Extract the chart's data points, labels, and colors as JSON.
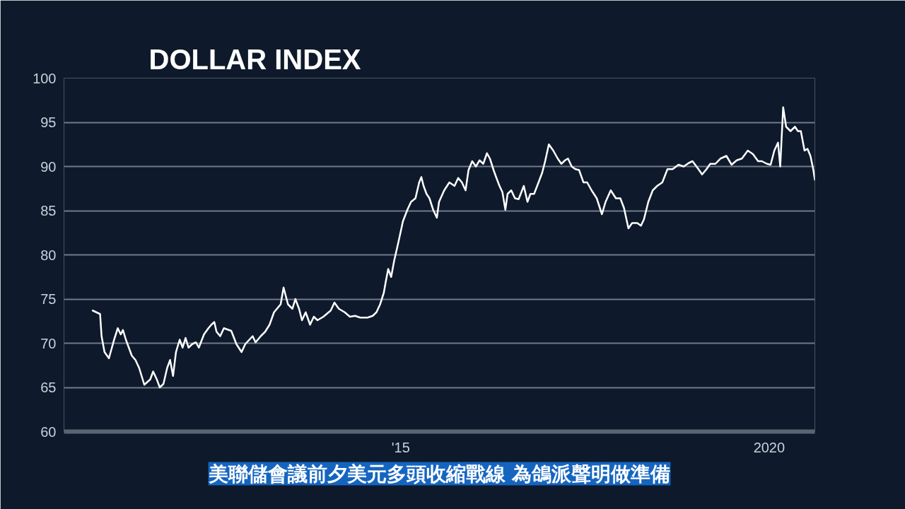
{
  "chart_data": {
    "type": "line",
    "title": "DOLLAR INDEX",
    "annotations": [
      "美聯儲會議前夕美元多頭收縮戰線 為鴿派聲明做準備"
    ],
    "x": [
      2010.82,
      2010.92,
      2010.94,
      2010.98,
      2011.04,
      2011.08,
      2011.11,
      2011.16,
      2011.2,
      2011.23,
      2011.27,
      2011.31,
      2011.35,
      2011.4,
      2011.45,
      2011.52,
      2011.6,
      2011.64,
      2011.69,
      2011.73,
      2011.78,
      2011.83,
      2011.87,
      2011.91,
      2011.95,
      2012.0,
      2012.04,
      2012.08,
      2012.12,
      2012.17,
      2012.22,
      2012.26,
      2012.33,
      2012.39,
      2012.43,
      2012.47,
      2012.5,
      2012.55,
      2012.6,
      2012.7,
      2012.77,
      2012.84,
      2012.89,
      2012.99,
      2013.03,
      2013.1,
      2013.16,
      2013.22,
      2013.28,
      2013.32,
      2013.37,
      2013.41,
      2013.47,
      2013.53,
      2013.57,
      2013.62,
      2013.66,
      2013.71,
      2013.77,
      2013.82,
      2013.87,
      2013.95,
      2014.05,
      2014.1,
      2014.16,
      2014.24,
      2014.31,
      2014.38,
      2014.45,
      2014.55,
      2014.62,
      2014.67,
      2014.72,
      2014.77,
      2014.8,
      2014.83,
      2014.87,
      2014.91,
      2014.97,
      2015.03,
      2015.09,
      2015.14,
      2015.2,
      2015.25,
      2015.28,
      2015.31,
      2015.35,
      2015.39,
      2015.44,
      2015.49,
      2015.52,
      2015.59,
      2015.66,
      2015.73,
      2015.78,
      2015.83,
      2015.88,
      2015.92,
      2015.97,
      2016.02,
      2016.07,
      2016.12,
      2016.17,
      2016.21,
      2016.26,
      2016.29,
      2016.34,
      2016.38,
      2016.42,
      2016.45,
      2016.5,
      2016.55,
      2016.6,
      2016.67,
      2016.72,
      2016.76,
      2016.81,
      2016.87,
      2016.92,
      2016.96,
      2017.01,
      2017.07,
      2017.13,
      2017.18,
      2017.23,
      2017.27,
      2017.32,
      2017.37,
      2017.42,
      2017.48,
      2017.53,
      2017.59,
      2017.66,
      2017.73,
      2017.78,
      2017.85,
      2017.92,
      2017.98,
      2018.03,
      2018.09,
      2018.14,
      2018.21,
      2018.26,
      2018.3,
      2018.36,
      2018.42,
      2018.48,
      2018.55,
      2018.62,
      2018.69,
      2018.77,
      2018.84,
      2018.91,
      2018.96,
      2019.04,
      2019.09,
      2019.15,
      2019.2,
      2019.27,
      2019.34,
      2019.42,
      2019.49,
      2019.56,
      2019.63,
      2019.71,
      2019.78,
      2019.85,
      2019.9,
      2019.97,
      2020.02,
      2020.07,
      2020.12,
      2020.15,
      2020.19,
      2020.23,
      2020.29,
      2020.35,
      2020.39,
      2020.43,
      2020.48,
      2020.52,
      2020.56,
      2020.6,
      2020.62
    ],
    "series": [
      {
        "color": "#ffffff",
        "values": [
          73.7,
          73.3,
          70.8,
          69.0,
          68.3,
          69.5,
          70.4,
          71.7,
          71.0,
          71.5,
          70.4,
          69.5,
          68.6,
          68.1,
          67.2,
          65.3,
          65.9,
          66.8,
          65.9,
          65.0,
          65.4,
          67.2,
          68.1,
          66.3,
          69.0,
          70.4,
          69.5,
          70.6,
          69.5,
          69.9,
          70.1,
          69.5,
          71.0,
          71.7,
          72.1,
          72.4,
          71.3,
          70.8,
          71.7,
          71.4,
          69.9,
          69.0,
          69.9,
          70.8,
          70.1,
          70.8,
          71.3,
          72.1,
          73.5,
          73.9,
          74.4,
          76.3,
          74.4,
          73.9,
          75.0,
          73.9,
          72.6,
          73.5,
          72.1,
          73.0,
          72.6,
          73.0,
          73.7,
          74.6,
          73.9,
          73.5,
          73.0,
          73.1,
          72.9,
          72.9,
          73.1,
          73.5,
          74.4,
          75.7,
          77.1,
          78.4,
          77.5,
          79.3,
          81.5,
          83.8,
          85.1,
          86.0,
          86.4,
          88.2,
          88.8,
          87.8,
          86.9,
          86.4,
          85.1,
          84.2,
          86.0,
          87.3,
          88.2,
          87.8,
          88.7,
          88.2,
          87.3,
          89.6,
          90.6,
          90.0,
          90.7,
          90.3,
          91.5,
          90.9,
          89.6,
          88.9,
          87.8,
          87.1,
          85.1,
          86.9,
          87.3,
          86.4,
          86.3,
          87.8,
          86.0,
          86.9,
          86.9,
          88.2,
          89.3,
          90.6,
          92.5,
          91.8,
          90.9,
          90.3,
          90.7,
          90.9,
          90.0,
          89.7,
          89.6,
          88.2,
          88.2,
          87.3,
          86.4,
          84.6,
          86.0,
          87.3,
          86.4,
          86.4,
          85.3,
          83.0,
          83.6,
          83.6,
          83.3,
          84.0,
          86.0,
          87.3,
          87.8,
          88.2,
          89.7,
          89.7,
          90.2,
          90.0,
          90.4,
          90.6,
          89.7,
          89.1,
          89.7,
          90.3,
          90.3,
          90.9,
          91.2,
          90.2,
          90.7,
          90.9,
          91.8,
          91.4,
          90.6,
          90.6,
          90.3,
          90.2,
          91.8,
          92.7,
          90.0,
          96.7,
          94.5,
          94.0,
          94.5,
          94.0,
          94.0,
          91.8,
          92.0,
          91.2,
          89.6,
          88.5
        ]
      }
    ],
    "xlim": [
      2010.43,
      2020.62
    ],
    "xticks": [
      {
        "value": 2015,
        "label": "'15"
      },
      2020
    ],
    "ylim": [
      60,
      100
    ],
    "yticks": [
      60,
      65,
      70,
      75,
      80,
      85,
      90,
      95,
      100
    ],
    "grid": "y",
    "marker": "none",
    "line_style": "solid"
  }
}
